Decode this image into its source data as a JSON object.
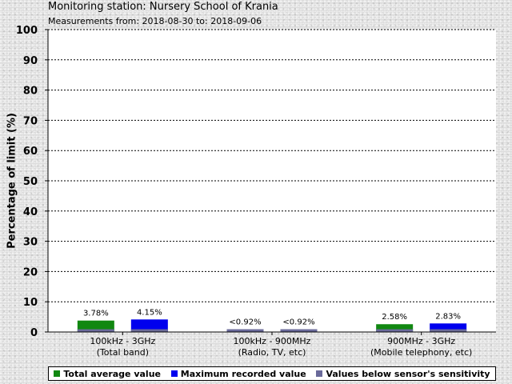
{
  "chart_data": {
    "type": "bar",
    "title": "Monitoring station: Nursery School of Krania",
    "subtitle": "Measurements from: 2018-08-30 to: 2018-09-06",
    "ylabel": "Percentage of limit (%)",
    "xlabel": "",
    "ylim": [
      0,
      100
    ],
    "yticks": [
      0,
      10,
      20,
      30,
      40,
      50,
      60,
      70,
      80,
      90,
      100
    ],
    "grid": true,
    "legend_position": "bottom",
    "categories": [
      {
        "line1": "100kHz - 3GHz",
        "line2": "(Total band)"
      },
      {
        "line1": "100kHz - 900MHz",
        "line2": "(Radio, TV, etc)"
      },
      {
        "line1": "900MHz - 3GHz",
        "line2": "(Mobile telephony, etc)"
      }
    ],
    "series": [
      {
        "name": "Total average value",
        "color": "#118811",
        "values": [
          3.78,
          0.92,
          2.58
        ],
        "labels": [
          "3.78%",
          "<0.92%",
          "2.58%"
        ],
        "below_sensitivity": [
          false,
          true,
          false
        ]
      },
      {
        "name": "Maximum recorded value",
        "color": "#0000ee",
        "values": [
          4.15,
          0.92,
          2.83
        ],
        "labels": [
          "4.15%",
          "<0.92%",
          "2.83%"
        ],
        "below_sensitivity": [
          false,
          true,
          false
        ]
      }
    ],
    "sensitivity": {
      "name": "Values below sensor's sensitivity",
      "color": "#6a6a9a",
      "value": 0.92
    }
  }
}
